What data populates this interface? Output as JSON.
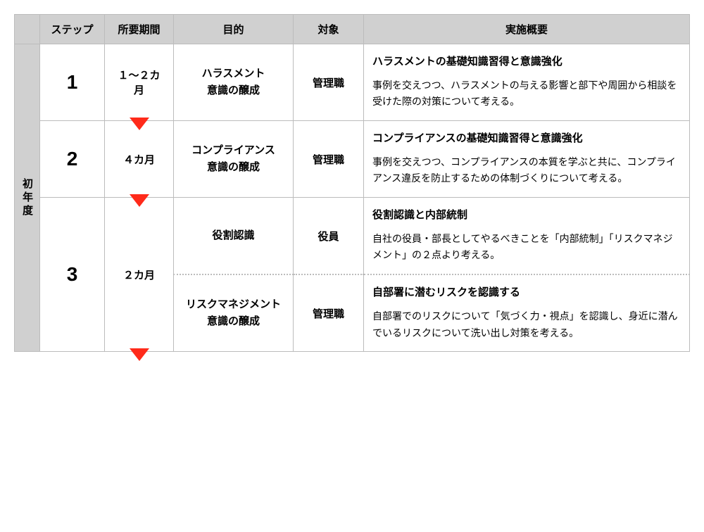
{
  "header": {
    "col0": "",
    "col1": "ステップ",
    "col2": "所要期間",
    "col3": "目的",
    "col4": "対象",
    "col5": "実施概要"
  },
  "yearLabel": "初年度",
  "arrowColor": "#ff2a1a",
  "rows": [
    {
      "step": "1",
      "duration": "１～２カ月",
      "purpose": "ハラスメント\n意識の醸成",
      "target": "管理職",
      "ovTitle": "ハラスメントの基礎知識習得と意識強化",
      "ovBody": "事例を交えつつ、ハラスメントの与える影響と部下や周囲から相談を受けた際の対策について考える。",
      "arrow": true
    },
    {
      "step": "2",
      "duration": "４カ月",
      "purpose": "コンプライアンス\n意識の醸成",
      "target": "管理職",
      "ovTitle": "コンプライアンスの基礎知識習得と意識強化",
      "ovBody": "事例を交えつつ、コンプライアンスの本質を学ぶと共に、コンプライアンス違反を防止するための体制づくりについて考える。",
      "arrow": true
    },
    {
      "step": "3",
      "duration": "２カ月",
      "sub": [
        {
          "purpose": "役割認識",
          "target": "役員",
          "ovTitle": "役割認識と内部統制",
          "ovBody": "自社の役員・部長としてやるべきことを「内部統制」「リスクマネジメント」の２点より考える。"
        },
        {
          "purpose": "リスクマネジメント\n意識の醸成",
          "target": "管理職",
          "ovTitle": "自部署に潜むリスクを認識する",
          "ovBody": "自部署でのリスクについて「気づく力・視点」を認識し、身近に潜んでいるリスクについて洗い出し対策を考える。"
        }
      ],
      "arrow": true
    }
  ]
}
